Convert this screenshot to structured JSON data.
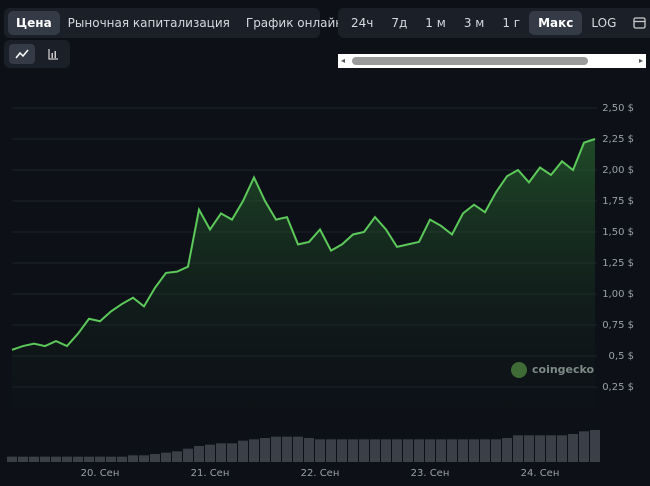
{
  "toolbar": {
    "tabs": [
      "Цена",
      "Рыночная капитализация",
      "График онлайн"
    ],
    "selected_tab": 0,
    "ranges": [
      "24ч",
      "7д",
      "1 м",
      "3 м",
      "1 г",
      "Макс",
      "LOG"
    ],
    "selected_range": 5
  },
  "watermark": "coingecko",
  "chart_data": {
    "type": "area",
    "color": "#5cc95a",
    "categories": [
      null,
      null,
      null,
      null,
      null,
      null,
      null,
      null,
      "20. Сен",
      null,
      null,
      null,
      null,
      null,
      null,
      null,
      null,
      null,
      "21. Сен",
      null,
      null,
      null,
      null,
      null,
      null,
      null,
      null,
      null,
      "22. Сен",
      null,
      null,
      null,
      null,
      null,
      null,
      null,
      null,
      null,
      "23. Сен",
      null,
      null,
      null,
      null,
      null,
      null,
      null,
      null,
      null,
      "24. Сен",
      null,
      null,
      null,
      null,
      null
    ],
    "values": [
      0.55,
      0.58,
      0.6,
      0.58,
      0.62,
      0.58,
      0.68,
      0.8,
      0.78,
      0.86,
      0.92,
      0.97,
      0.9,
      1.05,
      1.17,
      1.18,
      1.22,
      1.68,
      1.52,
      1.65,
      1.6,
      1.75,
      1.94,
      1.75,
      1.6,
      1.62,
      1.4,
      1.42,
      1.52,
      1.35,
      1.4,
      1.48,
      1.5,
      1.62,
      1.52,
      1.38,
      1.4,
      1.42,
      1.6,
      1.55,
      1.48,
      1.65,
      1.72,
      1.66,
      1.82,
      1.95,
      2.0,
      1.9,
      2.02,
      1.96,
      2.07,
      2.0,
      2.22,
      2.25
    ],
    "volume": [
      0.2,
      0.2,
      0.2,
      0.2,
      0.2,
      0.2,
      0.2,
      0.2,
      0.2,
      0.2,
      0.2,
      0.25,
      0.25,
      0.3,
      0.35,
      0.4,
      0.5,
      0.6,
      0.65,
      0.7,
      0.7,
      0.8,
      0.85,
      0.9,
      0.95,
      0.95,
      0.95,
      0.9,
      0.85,
      0.85,
      0.85,
      0.85,
      0.85,
      0.85,
      0.85,
      0.85,
      0.85,
      0.85,
      0.85,
      0.85,
      0.85,
      0.85,
      0.85,
      0.85,
      0.85,
      0.9,
      1.0,
      1.0,
      1.0,
      1.0,
      1.0,
      1.05,
      1.15,
      1.2
    ],
    "ylim": [
      0,
      2.5
    ],
    "yticks": [
      {
        "value": 0.25,
        "label": "0,25 $"
      },
      {
        "value": 0.5,
        "label": "0,5 $"
      },
      {
        "value": 0.75,
        "label": "0,75 $"
      },
      {
        "value": 1,
        "label": "1,00 $"
      },
      {
        "value": 1.25,
        "label": "1,25 $"
      },
      {
        "value": 1.5,
        "label": "1,50 $"
      },
      {
        "value": 1.75,
        "label": "1,75 $"
      },
      {
        "value": 2,
        "label": "2,00 $"
      },
      {
        "value": 2.25,
        "label": "2,25 $"
      },
      {
        "value": 2.5,
        "label": "2,50 $"
      }
    ],
    "grid": true
  }
}
